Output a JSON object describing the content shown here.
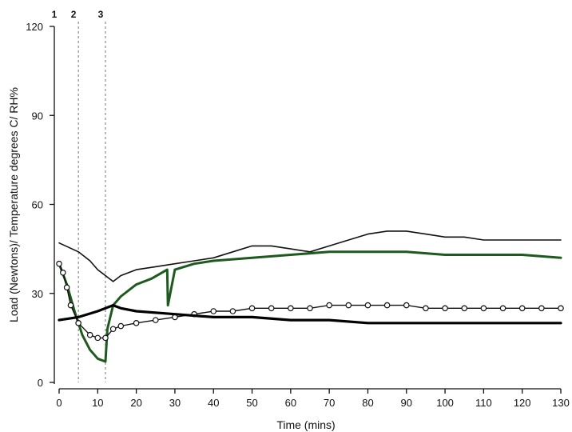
{
  "chart_data": {
    "type": "line",
    "title": "",
    "xlabel": "Time (mins)",
    "ylabel": "Load (Newtons)/ Temperature degrees C/ RH%",
    "xlim": [
      0,
      130
    ],
    "ylim": [
      0,
      120
    ],
    "x_ticks": [
      0,
      10,
      20,
      30,
      40,
      50,
      60,
      70,
      80,
      90,
      100,
      110,
      120,
      130
    ],
    "y_ticks": [
      0,
      30,
      60,
      90,
      120
    ],
    "grid": false,
    "legend": "none",
    "event_markers": [
      {
        "label": "1",
        "x": 0
      },
      {
        "label": "2",
        "x": 5
      },
      {
        "label": "3",
        "x": 12
      }
    ],
    "series": [
      {
        "color": "#111111",
        "style": "thin-line",
        "x": [
          0,
          5,
          8,
          10,
          12,
          14,
          16,
          20,
          25,
          30,
          35,
          40,
          45,
          50,
          55,
          60,
          65,
          70,
          75,
          80,
          85,
          90,
          95,
          100,
          105,
          110,
          115,
          120,
          125,
          130
        ],
        "y": [
          47,
          44,
          41,
          38,
          36,
          34,
          36,
          38,
          39,
          40,
          41,
          42,
          44,
          46,
          46,
          45,
          44,
          46,
          48,
          50,
          51,
          51,
          50,
          49,
          49,
          48,
          48,
          48,
          48,
          48
        ]
      },
      {
        "color": "#1e5a1e",
        "style": "thick-line",
        "x": [
          0,
          2,
          4,
          6,
          8,
          10,
          12,
          12.5,
          14,
          16,
          20,
          24,
          28,
          28.2,
          30,
          35,
          40,
          50,
          60,
          70,
          80,
          90,
          100,
          110,
          120,
          130
        ],
        "y": [
          40,
          33,
          24,
          16,
          11,
          8,
          7,
          18,
          26,
          29,
          33,
          35,
          38,
          26,
          38,
          40,
          41,
          42,
          43,
          44,
          44,
          44,
          43,
          43,
          43,
          42
        ]
      },
      {
        "color": "#111111",
        "style": "line-open-circles",
        "x": [
          0,
          1,
          2,
          3,
          5,
          8,
          10,
          12,
          14,
          16,
          20,
          25,
          30,
          35,
          40,
          45,
          50,
          55,
          60,
          65,
          70,
          75,
          80,
          85,
          90,
          95,
          100,
          105,
          110,
          115,
          120,
          125,
          130
        ],
        "y": [
          40,
          37,
          32,
          26,
          20,
          16,
          15,
          15,
          18,
          19,
          20,
          21,
          22,
          23,
          24,
          24,
          25,
          25,
          25,
          25,
          26,
          26,
          26,
          26,
          26,
          25,
          25,
          25,
          25,
          25,
          25,
          25,
          25
        ]
      },
      {
        "color": "#000000",
        "style": "thick-noisy-line",
        "x": [
          0,
          5,
          10,
          12,
          14,
          16,
          20,
          30,
          40,
          50,
          60,
          70,
          80,
          90,
          100,
          110,
          120,
          130
        ],
        "y": [
          21,
          22,
          24,
          25,
          26,
          25,
          24,
          23,
          22,
          22,
          21,
          21,
          20,
          20,
          20,
          20,
          20,
          20
        ]
      }
    ]
  }
}
